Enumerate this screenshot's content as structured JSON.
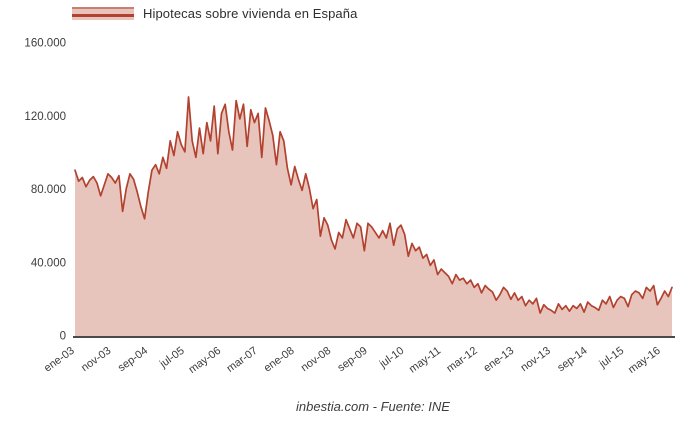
{
  "colors": {
    "line": "#b2422f",
    "fill": "#e8c5bc",
    "axis_line": "#4a4a4a",
    "tick_text": "#3c3c3c"
  },
  "chart_data": {
    "type": "area",
    "legend_label": "Hipotecas sobre vivienda en España",
    "source_note": "inbestia.com - Fuente: INE",
    "frequency": "monthly",
    "x_start_month": "ene-03",
    "x_end_month": "ago-16",
    "x_tick_interval_months": 10,
    "x_tick_labels": [
      "ene-03",
      "nov-03",
      "sep-04",
      "jul-05",
      "may-06",
      "mar-07",
      "ene-08",
      "nov-08",
      "sep-09",
      "jul-10",
      "may-11",
      "mar-12",
      "ene-13",
      "nov-13",
      "sep-14",
      "jul-15",
      "may-16"
    ],
    "y_tick_values": [
      0,
      40000,
      80000,
      120000,
      160000
    ],
    "y_tick_labels": [
      "0",
      "40.000",
      "80.000",
      "120.000",
      "160.000"
    ],
    "ylim": [
      0,
      160000
    ],
    "grid": false,
    "legend_position": "top-left",
    "values": [
      90000,
      84000,
      86000,
      81000,
      84500,
      86500,
      83000,
      76000,
      82000,
      88000,
      86000,
      83000,
      87000,
      67500,
      80000,
      88000,
      85000,
      78000,
      70000,
      63500,
      78000,
      90000,
      93000,
      88000,
      97000,
      91000,
      106000,
      98000,
      111000,
      104000,
      100000,
      130000,
      106000,
      97000,
      113000,
      99000,
      116000,
      106000,
      125000,
      99000,
      121000,
      126000,
      111000,
      101000,
      128000,
      118000,
      126000,
      103000,
      123000,
      116000,
      121000,
      97000,
      124000,
      117000,
      109000,
      93000,
      111000,
      106000,
      91000,
      82000,
      92000,
      85000,
      79000,
      88000,
      80000,
      69000,
      74000,
      54000,
      64000,
      60000,
      52000,
      47000,
      56000,
      53000,
      63000,
      58000,
      53000,
      61000,
      59000,
      46000,
      61000,
      59000,
      56000,
      53000,
      57000,
      53000,
      61000,
      49000,
      58000,
      60000,
      55000,
      43000,
      50000,
      46000,
      48000,
      42000,
      44000,
      38000,
      41000,
      33000,
      36000,
      34000,
      32000,
      28000,
      33000,
      30000,
      31000,
      28000,
      30000,
      26000,
      28000,
      23000,
      27000,
      25000,
      23500,
      19000,
      22000,
      26000,
      24000,
      19500,
      23000,
      19000,
      21000,
      16000,
      19000,
      17000,
      20000,
      12000,
      16500,
      14500,
      13500,
      12000,
      17000,
      14000,
      16000,
      13000,
      16000,
      14500,
      17000,
      12500,
      18000,
      16000,
      15000,
      13500,
      19000,
      17000,
      21000,
      15000,
      19000,
      21000,
      20000,
      15500,
      22000,
      24000,
      23000,
      20000,
      26000,
      24000,
      27000,
      16500,
      20000,
      24000,
      21000,
      26000
    ]
  }
}
